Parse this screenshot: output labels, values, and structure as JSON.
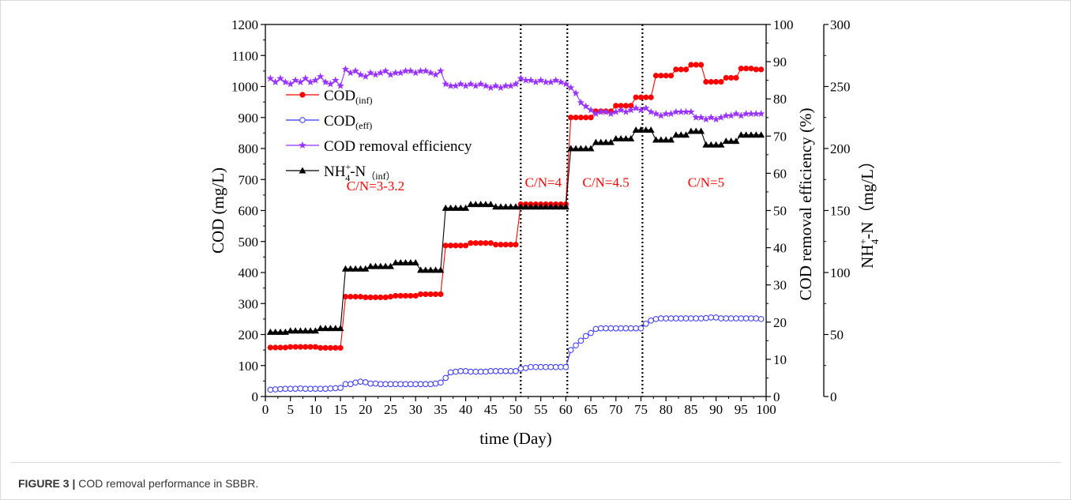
{
  "caption": {
    "label": "FIGURE 3 |",
    "text": "COD removal performance in SBBR."
  },
  "chart_data": {
    "type": "line",
    "xlabel": "time (Day)",
    "ylabel_left": "COD (mg/L)",
    "ylabel_right1": "COD removal efficiency (%)",
    "ylabel_right2_base": "NH",
    "ylabel_right2_sup": "+",
    "ylabel_right2_sub": "4",
    "ylabel_right2_rest": "-N（mg/L）",
    "xlim": [
      0,
      100
    ],
    "ylim_left": [
      0,
      1200
    ],
    "ylim_right1": [
      0,
      100
    ],
    "ylim_right2": [
      0,
      300
    ],
    "x_ticks": [
      0,
      5,
      10,
      15,
      20,
      25,
      30,
      35,
      40,
      45,
      50,
      55,
      60,
      65,
      70,
      75,
      80,
      85,
      90,
      95,
      100
    ],
    "y_ticks_left": [
      0,
      100,
      200,
      300,
      400,
      500,
      600,
      700,
      800,
      900,
      1000,
      1100,
      1200
    ],
    "y_ticks_right1": [
      0,
      10,
      20,
      30,
      40,
      50,
      60,
      70,
      80,
      90,
      100
    ],
    "y_ticks_right2": [
      0,
      50,
      100,
      150,
      200,
      250,
      300
    ],
    "phase_lines": [
      51,
      60.3,
      75.3
    ],
    "phase_labels": [
      {
        "text": "C/N=3-3.2",
        "x": 22,
        "y": 665
      },
      {
        "text": "C/N=4",
        "x": 55.5,
        "y": 676
      },
      {
        "text": "C/N=4.5",
        "x": 68,
        "y": 676
      },
      {
        "text": "C/N=5",
        "x": 88,
        "y": 676
      }
    ],
    "legend": [
      {
        "key": "cod_inf",
        "base": "COD",
        "sub": "(inf)",
        "sup": ""
      },
      {
        "key": "cod_eff",
        "base": "COD",
        "sub": "(eff)",
        "sup": ""
      },
      {
        "key": "eff",
        "base": "COD removal efficiency",
        "sub": "",
        "sup": ""
      },
      {
        "key": "nh4",
        "base": "NH",
        "sub": "4",
        "sup": "+",
        "rest": "-N",
        "sub2": "（inf）"
      }
    ],
    "colors": {
      "cod_inf": "#ff0000",
      "cod_eff": "#3333ff",
      "eff": "#9933ff",
      "nh4": "#000000",
      "phase": "#ff0000"
    },
    "series": [
      {
        "name": "COD(inf)",
        "axis": "left",
        "x": [
          1,
          2,
          3,
          4,
          5,
          6,
          7,
          8,
          9,
          10,
          11,
          12,
          13,
          14,
          15,
          16,
          17,
          18,
          19,
          20,
          21,
          22,
          23,
          24,
          25,
          26,
          27,
          28,
          29,
          30,
          31,
          32,
          33,
          34,
          35,
          36,
          37,
          38,
          39,
          40,
          41,
          42,
          43,
          44,
          45,
          46,
          47,
          48,
          49,
          50,
          51,
          52,
          53,
          54,
          55,
          56,
          57,
          58,
          59,
          60,
          61,
          62,
          63,
          64,
          65,
          66,
          67,
          68,
          69,
          70,
          71,
          72,
          73,
          74,
          75,
          76,
          77,
          78,
          79,
          80,
          81,
          82,
          83,
          84,
          85,
          86,
          87,
          88,
          89,
          90,
          91,
          92,
          93,
          94,
          95,
          96,
          97,
          98,
          99
        ],
        "y": [
          158,
          158,
          158,
          158,
          160,
          160,
          160,
          160,
          160,
          160,
          157,
          157,
          157,
          157,
          157,
          322,
          322,
          322,
          322,
          320,
          320,
          320,
          320,
          320,
          322,
          325,
          325,
          325,
          325,
          325,
          330,
          330,
          330,
          330,
          330,
          487,
          487,
          487,
          487,
          487,
          495,
          495,
          495,
          495,
          495,
          490,
          490,
          490,
          490,
          490,
          620,
          620,
          620,
          620,
          620,
          620,
          620,
          620,
          620,
          620,
          900,
          900,
          900,
          900,
          900,
          920,
          920,
          920,
          920,
          938,
          938,
          938,
          938,
          965,
          965,
          965,
          965,
          1035,
          1035,
          1035,
          1035,
          1055,
          1055,
          1055,
          1070,
          1070,
          1070,
          1015,
          1015,
          1015,
          1015,
          1028,
          1028,
          1028,
          1058,
          1058,
          1058,
          1055,
          1055
        ]
      },
      {
        "name": "COD(eff)",
        "axis": "left",
        "x": [
          1,
          2,
          3,
          4,
          5,
          6,
          7,
          8,
          9,
          10,
          11,
          12,
          13,
          14,
          15,
          16,
          17,
          18,
          19,
          20,
          21,
          22,
          23,
          24,
          25,
          26,
          27,
          28,
          29,
          30,
          31,
          32,
          33,
          34,
          35,
          36,
          37,
          38,
          39,
          40,
          41,
          42,
          43,
          44,
          45,
          46,
          47,
          48,
          49,
          50,
          51,
          52,
          53,
          54,
          55,
          56,
          57,
          58,
          59,
          60,
          61,
          62,
          63,
          64,
          65,
          66,
          67,
          68,
          69,
          70,
          71,
          72,
          73,
          74,
          75,
          76,
          77,
          78,
          79,
          80,
          81,
          82,
          83,
          84,
          85,
          86,
          87,
          88,
          89,
          90,
          91,
          92,
          93,
          94,
          95,
          96,
          97,
          98,
          99
        ],
        "y": [
          22,
          23,
          24,
          25,
          25,
          25,
          26,
          25,
          25,
          25,
          25,
          25,
          26,
          27,
          28,
          40,
          40,
          45,
          48,
          46,
          42,
          42,
          40,
          40,
          40,
          40,
          40,
          40,
          40,
          40,
          40,
          40,
          40,
          42,
          45,
          60,
          78,
          80,
          82,
          82,
          80,
          80,
          80,
          80,
          82,
          82,
          82,
          82,
          82,
          82,
          90,
          92,
          95,
          95,
          95,
          95,
          95,
          95,
          95,
          95,
          150,
          165,
          180,
          195,
          205,
          218,
          220,
          220,
          220,
          220,
          220,
          220,
          220,
          220,
          220,
          235,
          245,
          250,
          252,
          252,
          252,
          252,
          252,
          252,
          252,
          252,
          252,
          253,
          255,
          255,
          252,
          252,
          252,
          252,
          252,
          252,
          252,
          252,
          250
        ]
      },
      {
        "name": "COD removal efficiency",
        "axis": "right1",
        "x": [
          1,
          2,
          3,
          4,
          5,
          6,
          7,
          8,
          9,
          10,
          11,
          12,
          13,
          14,
          15,
          16,
          17,
          18,
          19,
          20,
          21,
          22,
          23,
          24,
          25,
          26,
          27,
          28,
          29,
          30,
          31,
          32,
          33,
          34,
          35,
          36,
          37,
          38,
          39,
          40,
          41,
          42,
          43,
          44,
          45,
          46,
          47,
          48,
          49,
          50,
          51,
          52,
          53,
          54,
          55,
          56,
          57,
          58,
          59,
          60,
          61,
          62,
          63,
          64,
          65,
          66,
          67,
          68,
          69,
          70,
          71,
          72,
          73,
          74,
          75,
          76,
          77,
          78,
          79,
          80,
          81,
          82,
          83,
          84,
          85,
          86,
          87,
          88,
          89,
          90,
          91,
          92,
          93,
          94,
          95,
          96,
          97,
          98,
          99
        ],
        "y": [
          85.5,
          84.5,
          85.5,
          84.5,
          84,
          85,
          84.5,
          85.5,
          84.5,
          85,
          86,
          84.5,
          84,
          85,
          83.5,
          88,
          87,
          87.5,
          86.5,
          86,
          87,
          86.5,
          87,
          87.5,
          86.5,
          87,
          87,
          87.5,
          87.5,
          87,
          87.5,
          87.5,
          87,
          86.5,
          87.5,
          84,
          83.5,
          83.5,
          84,
          83.5,
          84,
          83.5,
          84,
          83.5,
          83,
          83.5,
          83,
          83.5,
          83.5,
          84,
          85.5,
          85,
          85,
          84.5,
          85,
          84.5,
          84.5,
          85,
          84.5,
          84,
          83,
          81.5,
          79,
          78,
          77,
          76,
          76.5,
          76.5,
          76,
          76.5,
          77,
          76.5,
          77,
          77.5,
          77,
          77.5,
          76.5,
          76,
          75.5,
          76,
          76,
          76.5,
          76.5,
          76.5,
          76.5,
          75,
          75,
          74.5,
          75,
          74.5,
          75,
          75.5,
          75.5,
          76,
          75.5,
          76,
          76,
          76,
          76
        ]
      },
      {
        "name": "NH4+-N(inf)",
        "axis": "right2",
        "x": [
          1,
          2,
          3,
          4,
          5,
          6,
          7,
          8,
          9,
          10,
          11,
          12,
          13,
          14,
          15,
          16,
          17,
          18,
          19,
          20,
          21,
          22,
          23,
          24,
          25,
          26,
          27,
          28,
          29,
          30,
          31,
          32,
          33,
          34,
          35,
          36,
          37,
          38,
          39,
          40,
          41,
          42,
          43,
          44,
          45,
          46,
          47,
          48,
          49,
          50,
          51,
          52,
          53,
          54,
          55,
          56,
          57,
          58,
          59,
          60,
          61,
          62,
          63,
          64,
          65,
          66,
          67,
          68,
          69,
          70,
          71,
          72,
          73,
          74,
          75,
          76,
          77,
          78,
          79,
          80,
          81,
          82,
          83,
          84,
          85,
          86,
          87,
          88,
          89,
          90,
          91,
          92,
          93,
          94,
          95,
          96,
          97,
          98,
          99
        ],
        "y": [
          52,
          52,
          52,
          52,
          53,
          53,
          53,
          53,
          53,
          53,
          55,
          55,
          55,
          55,
          55,
          103,
          103,
          103,
          103,
          103,
          105,
          105,
          105,
          105,
          105,
          108,
          108,
          108,
          108,
          108,
          102,
          102,
          102,
          102,
          102,
          152,
          152,
          152,
          152,
          152,
          155,
          155,
          155,
          155,
          155,
          153,
          153,
          153,
          153,
          153,
          153,
          153,
          153,
          153,
          153,
          153,
          153,
          153,
          153,
          153,
          200,
          200,
          200,
          200,
          200,
          205,
          205,
          205,
          205,
          208,
          208,
          208,
          208,
          215,
          215,
          215,
          215,
          207,
          207,
          207,
          207,
          211,
          211,
          211,
          214,
          214,
          214,
          203,
          203,
          203,
          203,
          206,
          206,
          206,
          211,
          211,
          211,
          211,
          211
        ]
      }
    ]
  }
}
